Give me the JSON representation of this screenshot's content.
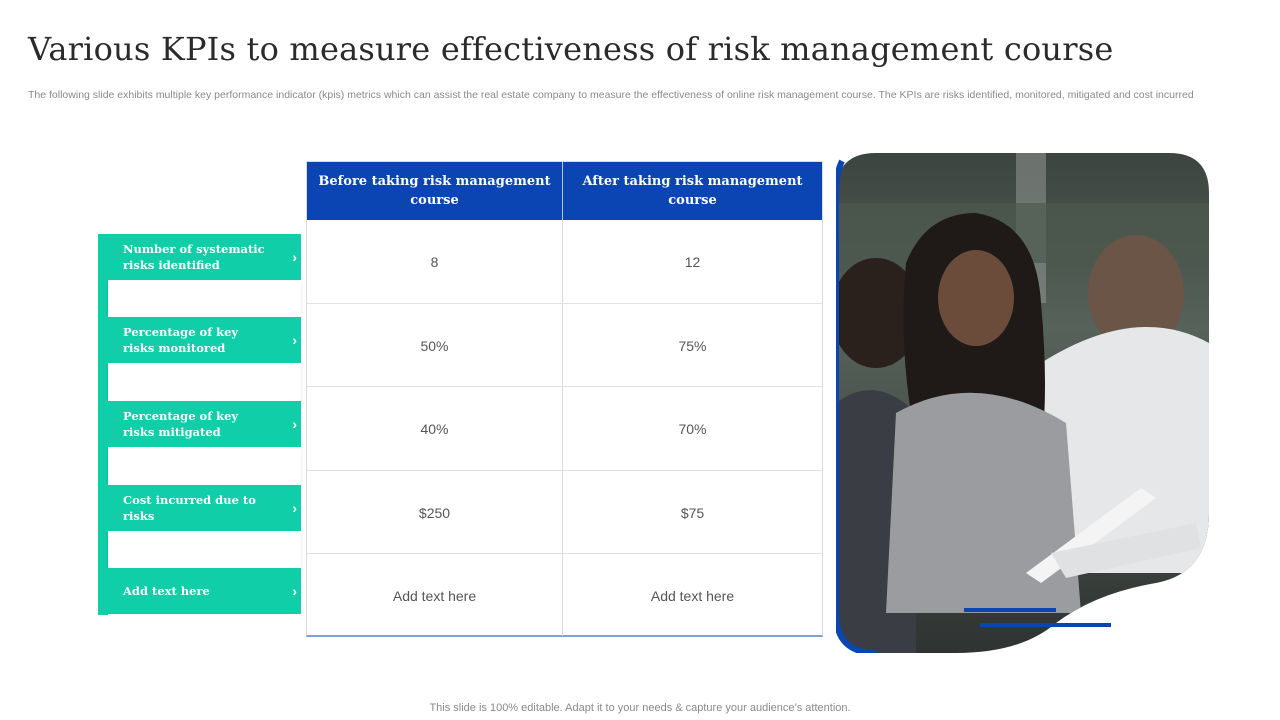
{
  "slide": {
    "title": "Various KPIs to measure effectiveness of risk management course",
    "subtitle": "The following slide exhibits multiple key performance indicator (kpis) metrics which can assist the real estate company to measure the effectiveness of online risk management course. The KPIs are risks identified, monitored, mitigated and cost incurred",
    "footer": "This slide is 100% editable. Adapt it to your needs & capture your audience’s attention."
  },
  "table": {
    "headers": [
      "Before taking risk management course",
      "After taking risk management course"
    ],
    "rows": [
      {
        "label": "Number of systematic risks identified",
        "before": "8",
        "after": "12"
      },
      {
        "label": "Percentage of key risks monitored",
        "before": "50%",
        "after": "75%"
      },
      {
        "label": "Percentage of key risks mitigated",
        "before": "40%",
        "after": "70%"
      },
      {
        "label": "Cost incurred due to risks",
        "before": "$250",
        "after": "$75"
      },
      {
        "label": "Add text here",
        "before": "Add text here",
        "after": "Add text here"
      }
    ]
  },
  "icons": {
    "row_arrow": "chevron-right-icon",
    "chevron_glyph": "›"
  },
  "colors": {
    "accent_teal": "#0fcea8",
    "header_blue": "#0a45b3",
    "text_gray": "#555555"
  }
}
